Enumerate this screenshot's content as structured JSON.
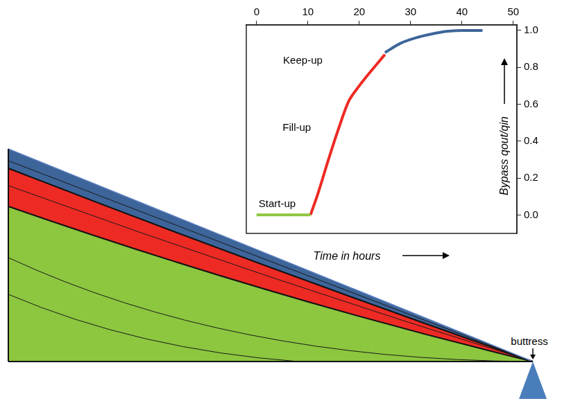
{
  "chart_data": {
    "type": "line",
    "x_label": "Time in hours",
    "y_label": "Bypass qout/qin",
    "xlim": [
      -2,
      50.7
    ],
    "xticks": [
      0,
      10,
      20,
      30,
      40,
      50
    ],
    "ylim": [
      -0.1,
      1.03
    ],
    "yticks": [
      {
        "value": 0,
        "label": "0.0"
      },
      {
        "value": 0.2,
        "label": "0.2"
      },
      {
        "value": 0.4,
        "label": "0.4"
      },
      {
        "value": 0.6,
        "label": "0.6"
      },
      {
        "value": 0.8,
        "label": "0.8"
      },
      {
        "value": 1,
        "label": "1.0"
      }
    ],
    "grid": false,
    "series": [
      {
        "name": "Start-up",
        "color": "#8dc63f",
        "x": [
          0,
          10.5
        ],
        "values": [
          0,
          0
        ]
      },
      {
        "name": "Fill-up",
        "color": "#ee2a24",
        "x": [
          10.5,
          12,
          14,
          16,
          18,
          20,
          22,
          25
        ],
        "values": [
          0,
          0.12,
          0.3,
          0.47,
          0.62,
          0.7,
          0.77,
          0.87
        ]
      },
      {
        "name": "Keep-up",
        "color": "#3d6599",
        "x": [
          25,
          28,
          31,
          34,
          37,
          40,
          43,
          44
        ],
        "values": [
          0.88,
          0.93,
          0.96,
          0.98,
          0.995,
          1,
          1,
          1
        ]
      }
    ]
  },
  "diagram": {
    "annotation": "buttress"
  }
}
